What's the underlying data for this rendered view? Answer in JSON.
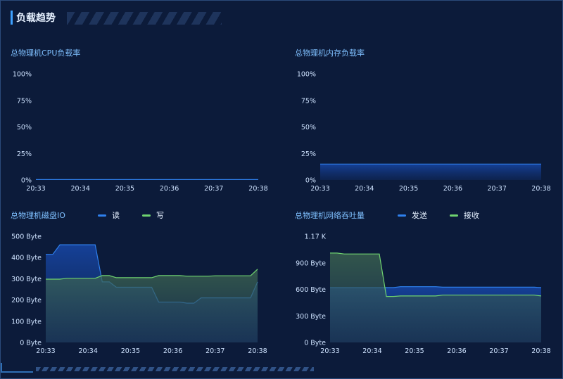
{
  "header": {
    "title": "负载趋势"
  },
  "charts": [
    {
      "id": "cpu",
      "title": "总物理机CPU负载率",
      "type": "area",
      "y_ticks": [
        "0%",
        "25%",
        "50%",
        "75%",
        "100%"
      ],
      "x_ticks": [
        "20:33",
        "20:34",
        "20:35",
        "20:36",
        "20:37",
        "20:38"
      ],
      "ylim": [
        0,
        100
      ],
      "series": [
        {
          "color": "#2f80ed",
          "values": [
            0.4,
            0.4,
            0.4,
            0.4,
            0.4,
            0.4,
            0.4,
            0.4,
            0.4,
            0.4,
            0.4,
            0.4,
            0.4,
            0.4,
            0.4,
            0.4,
            0.4,
            0.4,
            0.4,
            0.4,
            0.4,
            0.4,
            0.4,
            0.4,
            0.4,
            0.4,
            0.4,
            0.4,
            0.4,
            0.4,
            0.4
          ]
        }
      ]
    },
    {
      "id": "mem",
      "title": "总物理机内存负载率",
      "type": "area",
      "y_ticks": [
        "0%",
        "25%",
        "50%",
        "75%",
        "100%"
      ],
      "x_ticks": [
        "20:33",
        "20:34",
        "20:35",
        "20:36",
        "20:37",
        "20:38"
      ],
      "ylim": [
        0,
        100
      ],
      "series": [
        {
          "color": "#2f80ed",
          "values": [
            15,
            15,
            15,
            15,
            15,
            15,
            15,
            15,
            15,
            15,
            15,
            15,
            15,
            15,
            15,
            15,
            15,
            15,
            15,
            15,
            15,
            15,
            15,
            15,
            15,
            15,
            15,
            15,
            15,
            15,
            15
          ]
        }
      ]
    },
    {
      "id": "disk",
      "title": "总物理机磁盘IO",
      "type": "area",
      "legend": [
        "读",
        "写"
      ],
      "y_ticks": [
        "0 Byte",
        "100 Byte",
        "200 Byte",
        "300 Byte",
        "400 Byte",
        "500 Byte"
      ],
      "x_ticks": [
        "20:33",
        "20:34",
        "20:35",
        "20:36",
        "20:37",
        "20:38"
      ],
      "ylim": [
        0,
        500
      ],
      "series": [
        {
          "color": "#2f80ed",
          "values": [
            415,
            415,
            460,
            460,
            460,
            460,
            460,
            460,
            285,
            285,
            260,
            260,
            260,
            260,
            260,
            260,
            190,
            190,
            190,
            190,
            185,
            185,
            210,
            210,
            210,
            210,
            210,
            210,
            210,
            210,
            285
          ]
        },
        {
          "color": "#6fd36f",
          "values": [
            298,
            298,
            298,
            302,
            302,
            302,
            302,
            302,
            315,
            315,
            305,
            305,
            305,
            305,
            305,
            305,
            315,
            315,
            315,
            315,
            312,
            312,
            312,
            312,
            314,
            314,
            314,
            314,
            314,
            314,
            345
          ]
        }
      ]
    },
    {
      "id": "net",
      "title": "总物理机网络吞吐量",
      "type": "area",
      "legend": [
        "发送",
        "接收"
      ],
      "y_ticks": [
        "0 Byte",
        "300 Byte",
        "600 Byte",
        "900 Byte",
        "1.17 K"
      ],
      "x_ticks": [
        "20:33",
        "20:34",
        "20:35",
        "20:36",
        "20:37",
        "20:38"
      ],
      "ylim": [
        0,
        1200
      ],
      "series": [
        {
          "color": "#2f80ed",
          "values": [
            620,
            620,
            620,
            620,
            620,
            620,
            620,
            620,
            620,
            620,
            630,
            630,
            630,
            630,
            630,
            630,
            625,
            625,
            625,
            625,
            625,
            625,
            625,
            625,
            625,
            625,
            625,
            625,
            625,
            625,
            620
          ]
        },
        {
          "color": "#6fd36f",
          "values": [
            1010,
            1010,
            1000,
            1000,
            1000,
            1000,
            1000,
            1000,
            520,
            520,
            525,
            525,
            525,
            525,
            525,
            525,
            535,
            535,
            535,
            535,
            535,
            535,
            535,
            535,
            535,
            535,
            535,
            535,
            535,
            535,
            525
          ]
        }
      ]
    }
  ]
}
